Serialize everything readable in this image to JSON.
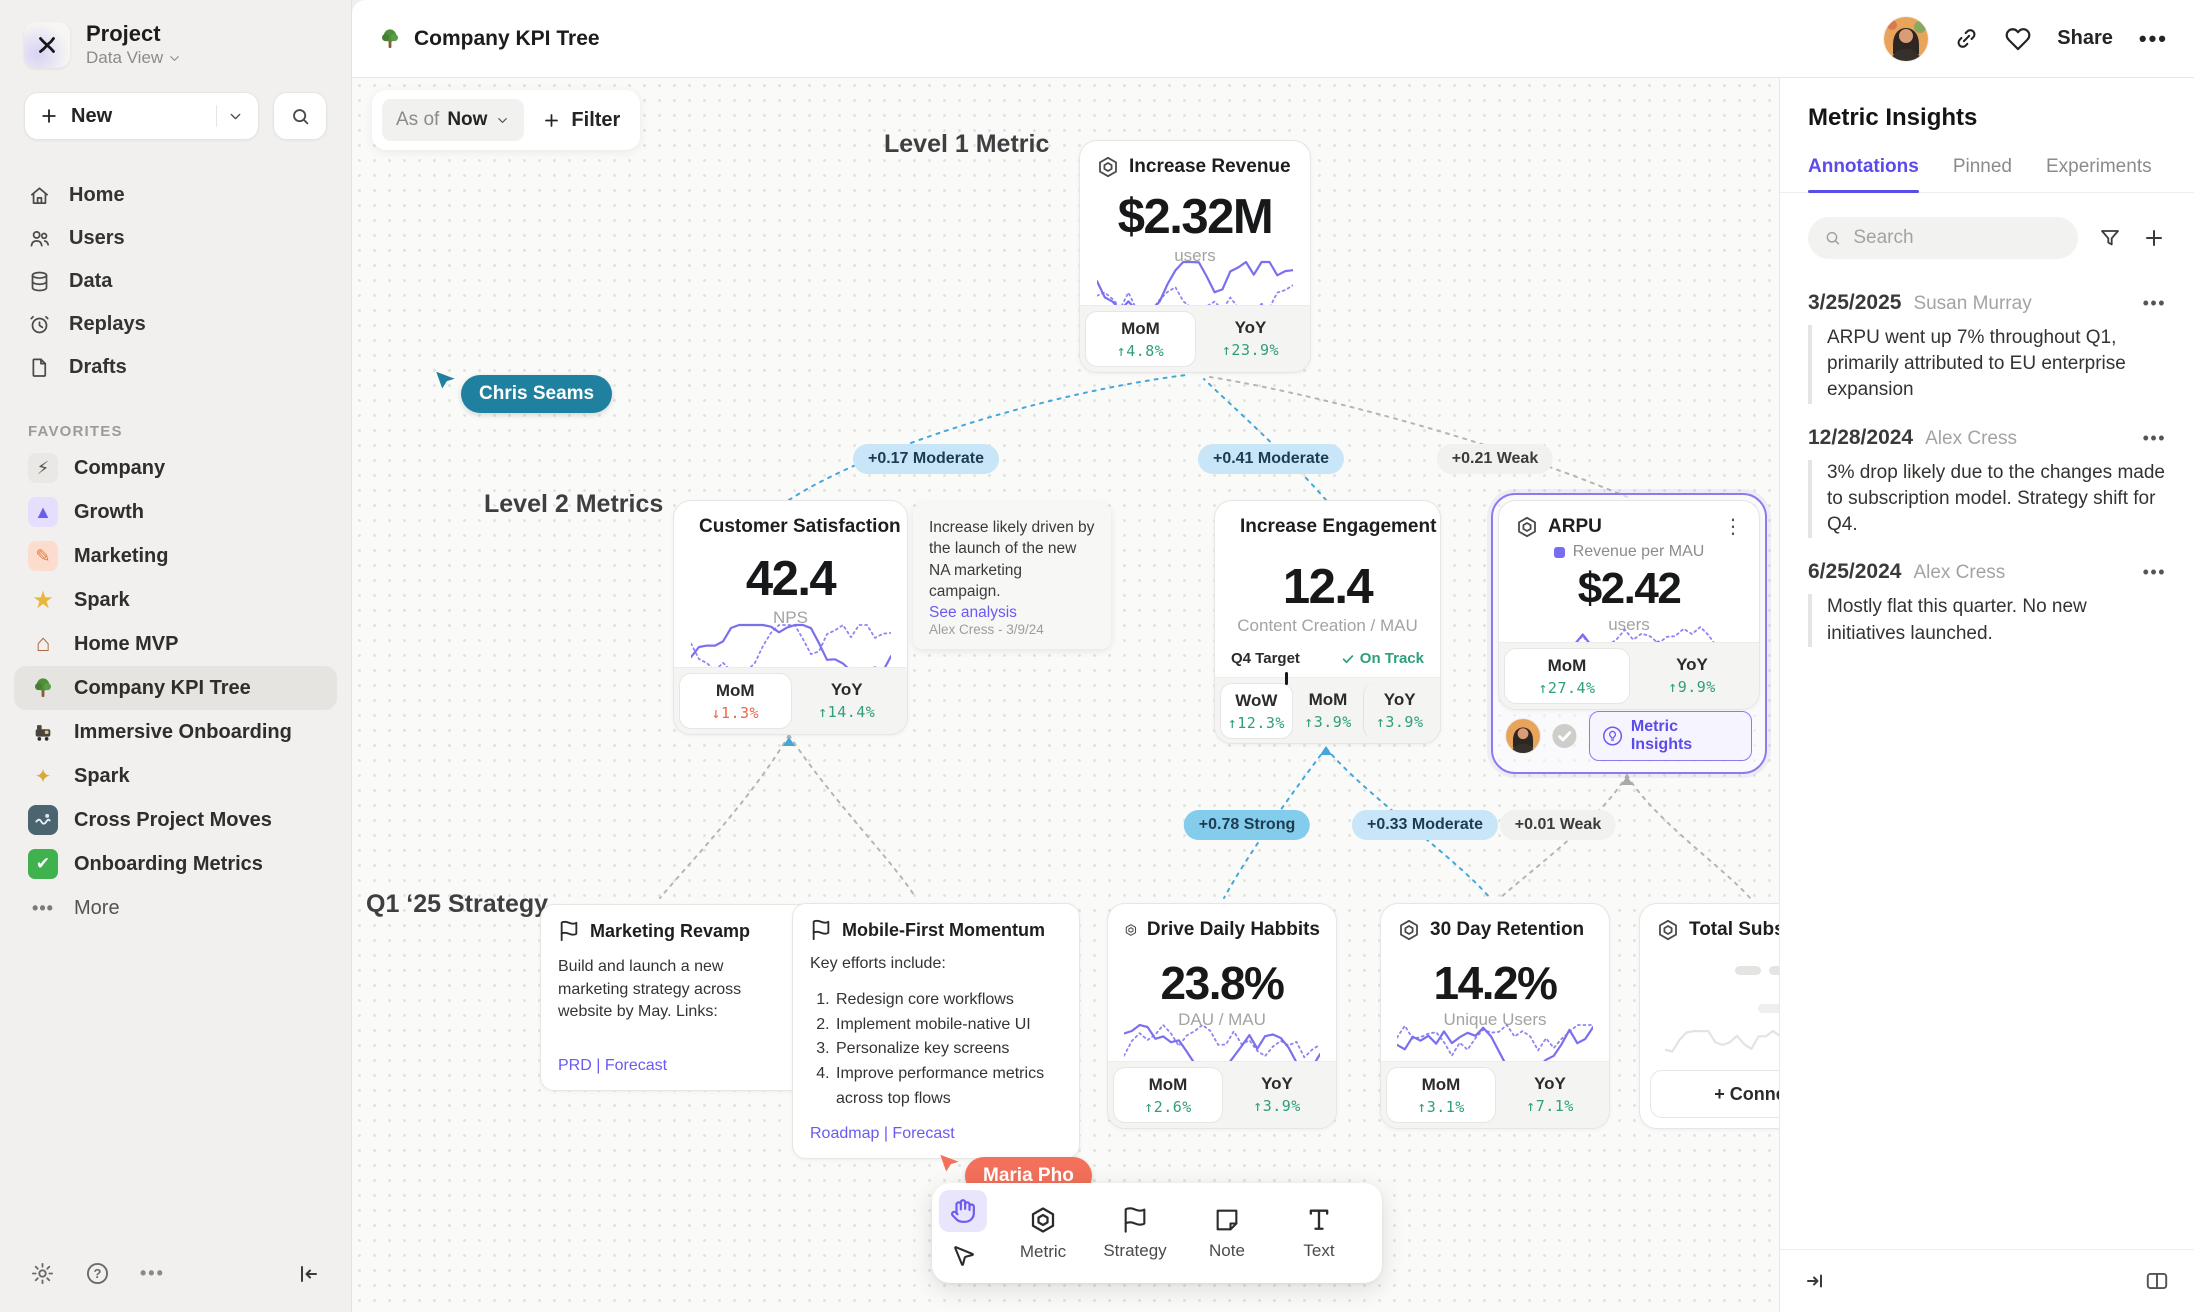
{
  "colors": {
    "accent": "#6b5bf0",
    "positive": "#2f9e7d",
    "negative": "#e8694a",
    "edge_blue": "#45a7d9",
    "cursor_teal": "#1f80a0",
    "cursor_coral": "#f3705a"
  },
  "sidebar": {
    "project_name": "Project",
    "project_view": "Data View",
    "new_label": "New",
    "favorites_label": "FAVORITES",
    "more_label": "More",
    "nav": [
      {
        "label": "Home"
      },
      {
        "label": "Users"
      },
      {
        "label": "Data"
      },
      {
        "label": "Replays"
      },
      {
        "label": "Drafts"
      }
    ],
    "favorites": [
      {
        "label": "Company"
      },
      {
        "label": "Growth"
      },
      {
        "label": "Marketing"
      },
      {
        "label": "Spark"
      },
      {
        "label": "Home MVP"
      },
      {
        "label": "Company KPI Tree"
      },
      {
        "label": "Immersive Onboarding"
      },
      {
        "label": "Spark"
      },
      {
        "label": "Cross Project Moves"
      },
      {
        "label": "Onboarding Metrics"
      }
    ]
  },
  "topbar": {
    "title": "Company KPI Tree",
    "share_label": "Share"
  },
  "canvas": {
    "filter_bar": {
      "as_of_label": "As of",
      "as_of_value": "Now",
      "filter_label": "Filter"
    },
    "zone_labels": {
      "level1": "Level 1 Metric",
      "level2": "Level 2 Metrics",
      "strategy": "Q1 ‘25 Strategy"
    },
    "cursors": {
      "chris": "Chris Seams",
      "maria": "Maria Pho"
    },
    "edges": {
      "e1": "+0.17 Moderate",
      "e2": "+0.41 Moderate",
      "e3": "+0.21 Weak",
      "e4": "+0.78 Strong",
      "e5": "+0.33 Moderate",
      "e6": "+0.01 Weak"
    },
    "cards": {
      "revenue": {
        "title": "Increase Revenue",
        "value": "$2.32M",
        "unit": "users",
        "stats": [
          {
            "label": "MoM",
            "value": "↑4.8%"
          },
          {
            "label": "YoY",
            "value": "↑23.9%"
          }
        ]
      },
      "csat": {
        "title": "Customer Satisfaction",
        "value": "42.4",
        "unit": "NPS",
        "stats": [
          {
            "label": "MoM",
            "value": "↓1.3%"
          },
          {
            "label": "YoY",
            "value": "↑14.4%"
          }
        ]
      },
      "note": {
        "text": "Increase likely driven by the launch of the new NA marketing campaign.",
        "link": "See analysis",
        "meta": "Alex Cress - 3/9/24"
      },
      "engagement": {
        "title": "Increase Engagement",
        "value": "12.4",
        "unit": "Content Creation / MAU",
        "target_label": "Q4 Target",
        "target_status": "On Track",
        "stats": [
          {
            "label": "WoW",
            "value": "↑12.3%"
          },
          {
            "label": "MoM",
            "value": "↑3.9%"
          },
          {
            "label": "YoY",
            "value": "↑3.9%"
          }
        ]
      },
      "arpu": {
        "title": "ARPU",
        "legend": "Revenue per MAU",
        "value": "$2.42",
        "unit": "users",
        "stats": [
          {
            "label": "MoM",
            "value": "↑27.4%"
          },
          {
            "label": "YoY",
            "value": "↑9.9%"
          }
        ],
        "insights_label": "Metric Insights"
      },
      "marketing_revamp": {
        "title": "Marketing Revamp",
        "body": "Build and launch a new marketing strategy across website by May. Links:",
        "links": "PRD | Forecast"
      },
      "mobile_first": {
        "title": "Mobile-First Momentum",
        "intro": "Key efforts include:",
        "items": [
          "Redesign core workflows",
          "Implement mobile-native UI",
          "Personalize key screens",
          "Improve performance metrics across top flows"
        ],
        "links": "Roadmap | Forecast"
      },
      "daily_habits": {
        "title": "Drive Daily Habbits",
        "value": "23.8%",
        "unit": "DAU / MAU",
        "stats": [
          {
            "label": "MoM",
            "value": "↑2.6%"
          },
          {
            "label": "YoY",
            "value": "↑3.9%"
          }
        ]
      },
      "retention": {
        "title": "30 Day Retention",
        "value": "14.2%",
        "unit": "Unique Users",
        "stats": [
          {
            "label": "MoM",
            "value": "↑3.1%"
          },
          {
            "label": "YoY",
            "value": "↑7.1%"
          }
        ]
      },
      "subscriptions": {
        "title": "Total Subscript",
        "connect_label": "+ Connec"
      }
    },
    "toolbar": {
      "metric": "Metric",
      "strategy": "Strategy",
      "note": "Note",
      "text": "Text"
    }
  },
  "panel": {
    "title": "Metric Insights",
    "tabs": [
      {
        "label": "Annotations"
      },
      {
        "label": "Pinned"
      },
      {
        "label": "Experiments"
      }
    ],
    "search_placeholder": "Search",
    "annotations": [
      {
        "date": "3/25/2025",
        "author": "Susan Murray",
        "text": "ARPU went up 7% throughout Q1, primarily attributed to EU enterprise expansion"
      },
      {
        "date": "12/28/2024",
        "author": "Alex Cress",
        "text": "3% drop likely due to the changes made to subscription model. Strategy shift for Q4."
      },
      {
        "date": "6/25/2024",
        "author": "Alex Cress",
        "text": "Mostly flat this quarter. No new initiatives launched."
      }
    ]
  }
}
